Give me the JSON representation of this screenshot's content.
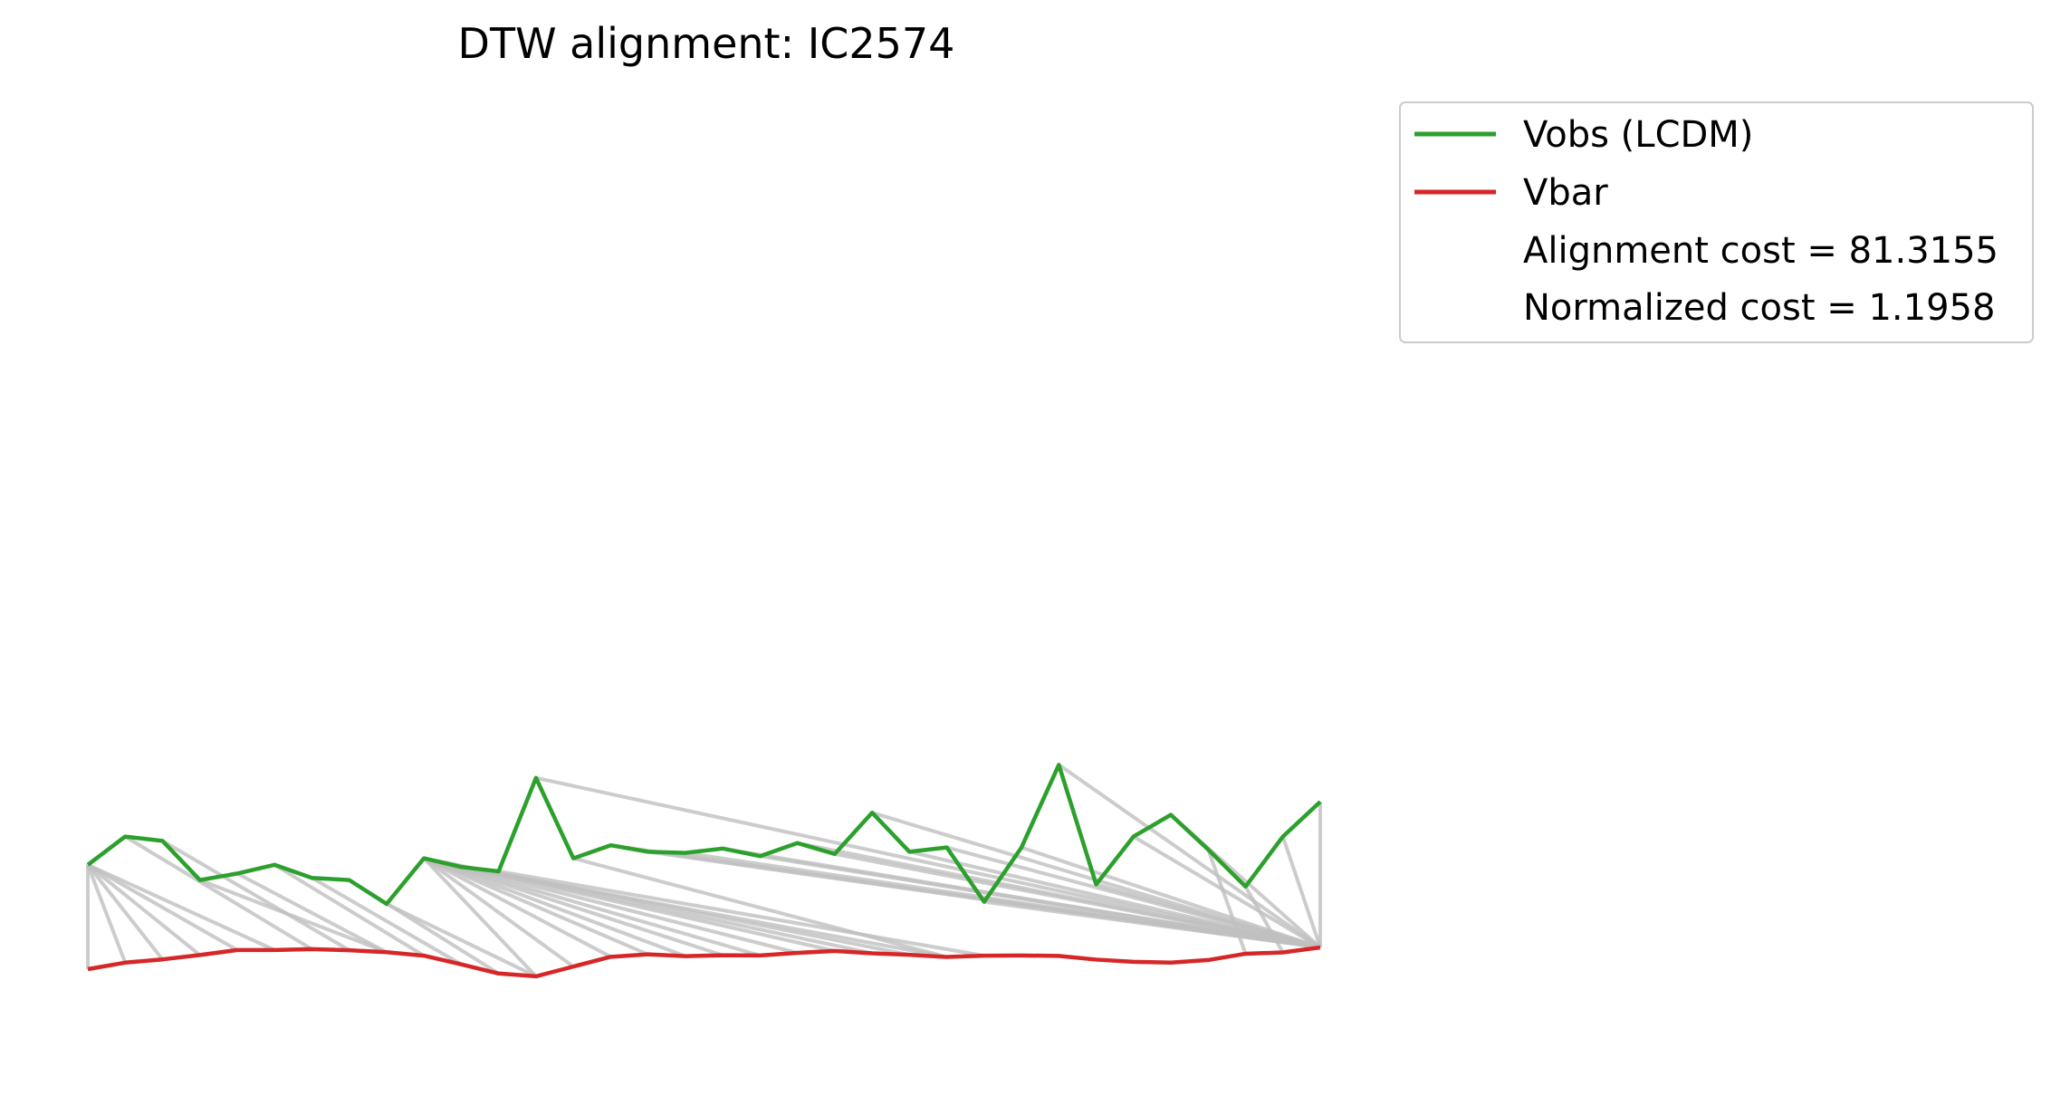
{
  "chart_data": {
    "type": "line",
    "title": "DTW alignment: IC2574",
    "axes_visible": false,
    "grid": false,
    "legend_position": "outside-right-top",
    "n_points": 34,
    "series": [
      {
        "name": "Vobs (LCDM)",
        "color": "#2ca02c",
        "values": [
          73,
          86,
          84,
          66,
          69,
          73,
          67,
          66,
          55,
          76,
          72,
          70,
          113,
          76,
          82,
          79,
          78.5,
          80.5,
          77,
          83,
          78,
          97,
          79,
          81,
          56,
          81,
          119,
          64,
          86,
          96,
          80,
          63,
          86,
          102
        ]
      },
      {
        "name": "Vbar",
        "color": "#d62728",
        "values": [
          25,
          28,
          29.5,
          31.5,
          33.8,
          33.8,
          34.2,
          33.7,
          32.8,
          31.2,
          27.2,
          23,
          21.7,
          26.2,
          30.7,
          31.8,
          31,
          31.4,
          31.3,
          32.5,
          33.4,
          32.3,
          31.6,
          30.6,
          31.2,
          31.3,
          31.1,
          29.4,
          28.4,
          28,
          29.2,
          32.1,
          32.7,
          35
        ]
      }
    ],
    "alignment_color": "#bfbfbf",
    "alignment_path": [
      [
        0,
        0
      ],
      [
        0,
        1
      ],
      [
        0,
        2
      ],
      [
        0,
        3
      ],
      [
        0,
        4
      ],
      [
        0,
        5
      ],
      [
        1,
        6
      ],
      [
        2,
        7
      ],
      [
        3,
        8
      ],
      [
        4,
        8
      ],
      [
        5,
        9
      ],
      [
        6,
        10
      ],
      [
        7,
        11
      ],
      [
        8,
        12
      ],
      [
        9,
        12
      ],
      [
        9,
        13
      ],
      [
        9,
        14
      ],
      [
        9,
        15
      ],
      [
        9,
        16
      ],
      [
        9,
        17
      ],
      [
        9,
        18
      ],
      [
        9,
        19
      ],
      [
        9,
        20
      ],
      [
        9,
        21
      ],
      [
        9,
        22
      ],
      [
        10,
        23
      ],
      [
        11,
        24
      ],
      [
        12,
        33
      ],
      [
        13,
        23
      ],
      [
        14,
        33
      ],
      [
        15,
        33
      ],
      [
        16,
        33
      ],
      [
        17,
        33
      ],
      [
        18,
        33
      ],
      [
        19,
        33
      ],
      [
        20,
        33
      ],
      [
        21,
        33
      ],
      [
        22,
        33
      ],
      [
        23,
        33
      ],
      [
        24,
        33
      ],
      [
        25,
        33
      ],
      [
        26,
        33
      ],
      [
        27,
        33
      ],
      [
        28,
        33
      ],
      [
        29,
        33
      ],
      [
        30,
        31
      ],
      [
        31,
        32
      ],
      [
        32,
        33
      ],
      [
        33,
        33
      ]
    ],
    "legend": [
      {
        "label": "Vobs (LCDM)",
        "color": "#2ca02c",
        "marker": "line"
      },
      {
        "label": "Vbar",
        "color": "#d62728",
        "marker": "line"
      },
      {
        "label": "Alignment cost = 81.3155",
        "marker": "none"
      },
      {
        "label": "Normalized cost = 1.1958",
        "marker": "none"
      }
    ]
  }
}
